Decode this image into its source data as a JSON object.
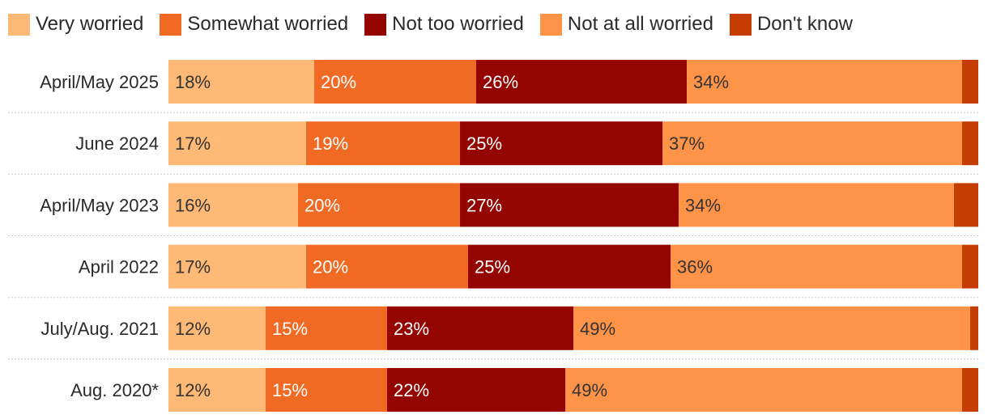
{
  "chart_data": {
    "type": "bar",
    "orientation": "horizontal",
    "stacked": true,
    "categories": [
      "April/May 2025",
      "June 2024",
      "April/May 2023",
      "April 2022",
      "July/Aug. 2021",
      "Aug. 2020*"
    ],
    "series": [
      {
        "name": "Very worried",
        "color": "#FDB975",
        "label_color": "#333333",
        "values": [
          18,
          17,
          16,
          17,
          12,
          12
        ]
      },
      {
        "name": "Somewhat worried",
        "color": "#F06A24",
        "label_color": "#ffffff",
        "values": [
          20,
          19,
          20,
          20,
          15,
          15
        ]
      },
      {
        "name": "Not too worried",
        "color": "#940500",
        "label_color": "#ffffff",
        "values": [
          26,
          25,
          27,
          25,
          23,
          22
        ]
      },
      {
        "name": "Not at all worried",
        "color": "#FF9348",
        "label_color": "#333333",
        "values": [
          34,
          37,
          34,
          36,
          49,
          49
        ]
      },
      {
        "name": "Don't know",
        "color": "#C53D02",
        "label_color": "#ffffff",
        "values": [
          2,
          2,
          3,
          2,
          1,
          2
        ]
      }
    ],
    "value_labels": [
      [
        "18%",
        "20%",
        "26%",
        "34%",
        ""
      ],
      [
        "17%",
        "19%",
        "25%",
        "37%",
        ""
      ],
      [
        "16%",
        "20%",
        "27%",
        "34%",
        ""
      ],
      [
        "17%",
        "20%",
        "25%",
        "36%",
        ""
      ],
      [
        "12%",
        "15%",
        "23%",
        "49%",
        ""
      ],
      [
        "12%",
        "15%",
        "22%",
        "49%",
        ""
      ]
    ],
    "xlim": [
      0,
      100
    ],
    "grid": false,
    "legend_position": "top"
  }
}
